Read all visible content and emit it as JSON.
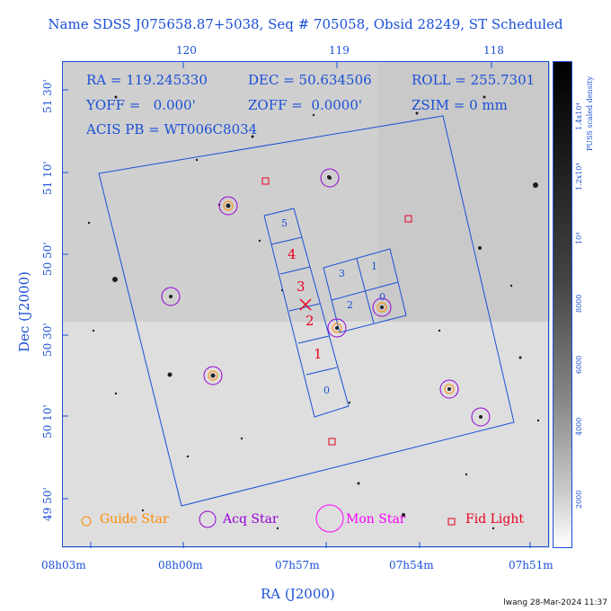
{
  "header": {
    "title": "Name SDSS J075658.87+5038, Seq # 705058, Obsid 28249, ST Scheduled"
  },
  "info": {
    "ra": "RA = 119.245330",
    "dec": "DEC = 50.634506",
    "roll": "ROLL = 255.7301",
    "yoff": "YOFF =   0.000'",
    "zoff": "ZOFF =  0.0000'",
    "zsim": "ZSIM = 0 mm",
    "acis_pb": "ACIS PB = WT006C8034"
  },
  "axes": {
    "top_ticks": [
      "120",
      "119",
      "118"
    ],
    "bottom_ticks": [
      "08h03m",
      "08h00m",
      "07h57m",
      "07h54m",
      "07h51m"
    ],
    "left_ticks": [
      "51 30'",
      "51 10'",
      "50 50'",
      "50 30'",
      "50 10'",
      "49 50'"
    ],
    "xlabel": "RA (J2000)",
    "ylabel": "Dec (J2000)"
  },
  "colorbar": {
    "label": "PUSS scaled density",
    "ticks": [
      "1.4x10⁴",
      "1.2x10⁴",
      "10⁴",
      "8000",
      "6000",
      "4000",
      "2000"
    ]
  },
  "chips": {
    "left": [
      "5",
      "4",
      "3",
      "2",
      "1",
      "0"
    ],
    "right": [
      "3",
      "1",
      "2",
      "0"
    ]
  },
  "legend": {
    "guide": "Guide Star",
    "acq": "Acq Star",
    "mon": "Mon Star",
    "fid": "Fid Light"
  },
  "colors": {
    "axis": "#1a4fd6",
    "guide": "#ff8c00",
    "acq": "#9400d3",
    "mon": "#ff00ff",
    "fid": "#e8001c",
    "chip_label_s": "#e8001c"
  },
  "footer": {
    "stamp": "lwang 28-Mar-2024 11:37"
  }
}
